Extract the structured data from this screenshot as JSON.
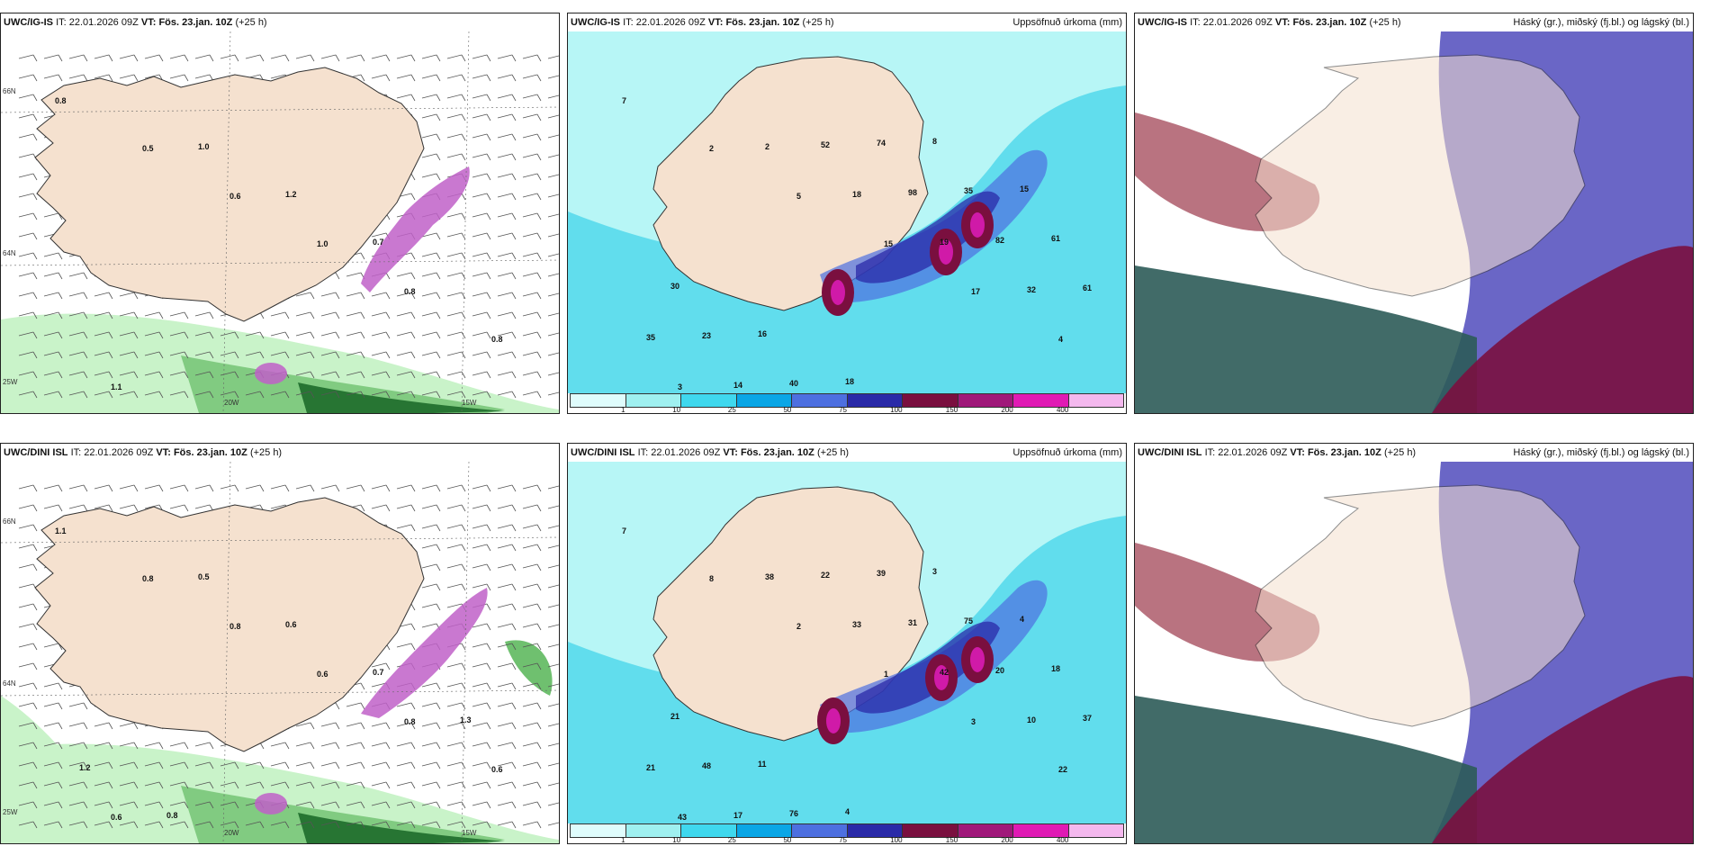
{
  "colors": {
    "land": "#f5e1cf",
    "sea_wind": "#ffffff",
    "precip_light": "#c9f3c9",
    "precip_mid": "#6fc06f",
    "precip_dark": "#1d6b2a",
    "snow_purple": "#c060c8",
    "cyan_low": "#b7f6f6",
    "cyan_mid": "#1cc9e6",
    "blue": "#4d6fe0",
    "navy": "#2a2aa8",
    "maroon": "#7a0f3f",
    "magenta": "#d01aa8",
    "low_cloud": "#2c5b58",
    "mid_cloud": "#5a55c0",
    "high_cloud": "#a85060"
  },
  "panels": [
    {
      "id": "ig-wind",
      "model": "UWC/IG-IS",
      "it_label": "IT:",
      "it": "22.01.2026 09Z",
      "vt_label": "VT:",
      "vt": "Fös. 23.jan. 10Z",
      "lead": "(+25 h)",
      "subtitle": "",
      "axis": {
        "lat_top": "66N",
        "lat_mid": "64N",
        "lon_left": "25W",
        "lon_mid": "20W",
        "lon_right": "15W"
      },
      "values": [
        "0.8",
        "0.5",
        "0.6",
        "1.0",
        "0.8",
        "0.8",
        "1.1",
        "1.0",
        "1.2",
        "0.7"
      ]
    },
    {
      "id": "ig-precip",
      "model": "UWC/IG-IS",
      "it_label": "IT:",
      "it": "22.01.2026 09Z",
      "vt_label": "VT:",
      "vt": "Fös. 23.jan. 10Z",
      "lead": "(+25 h)",
      "subtitle": "Uppsöfnuð úrkoma (mm)",
      "values": [
        "7",
        "2",
        "5",
        "15",
        "17",
        "4",
        "3",
        "2",
        "18",
        "19",
        "32",
        "35",
        "14",
        "52",
        "98",
        "82",
        "61",
        "23",
        "40",
        "74",
        "35",
        "61",
        "30",
        "16",
        "18",
        "8",
        "15"
      ],
      "legend": [
        "1",
        "10",
        "25",
        "50",
        "75",
        "100",
        "150",
        "200",
        "400"
      ]
    },
    {
      "id": "ig-cloud",
      "model": "UWC/IG-IS",
      "it_label": "IT:",
      "it": "22.01.2026 09Z",
      "vt_label": "VT:",
      "vt": "Fös. 23.jan. 10Z",
      "lead": "(+25 h)",
      "subtitle": "Háský (gr.), miðský (fj.bl.) og lágský (bl.)"
    },
    {
      "id": "dini-wind",
      "model": "UWC/DINI ISL",
      "it_label": "IT:",
      "it": "22.01.2026 09Z",
      "vt_label": "VT:",
      "vt": "Fös. 23.jan. 10Z",
      "lead": "(+25 h)",
      "subtitle": "",
      "axis": {
        "lat_top": "66N",
        "lat_mid": "64N",
        "lon_left": "25W",
        "lon_mid": "20W",
        "lon_right": "15W"
      },
      "values": [
        "1.1",
        "0.8",
        "0.8",
        "0.6",
        "0.8",
        "0.6",
        "0.6",
        "0.5",
        "0.6",
        "0.7",
        "1.3",
        "1.2",
        "0.8"
      ]
    },
    {
      "id": "dini-precip",
      "model": "UWC/DINI ISL",
      "it_label": "IT:",
      "it": "22.01.2026 09Z",
      "vt_label": "VT:",
      "vt": "Fös. 23.jan. 10Z",
      "lead": "(+25 h)",
      "subtitle": "Uppsöfnuð úrkoma (mm)",
      "values": [
        "7",
        "8",
        "2",
        "1",
        "3",
        "22",
        "43",
        "38",
        "33",
        "42",
        "10",
        "21",
        "17",
        "22",
        "31",
        "20",
        "37",
        "48",
        "76",
        "39",
        "75",
        "18",
        "21",
        "11",
        "4",
        "3",
        "4"
      ],
      "legend": [
        "1",
        "10",
        "25",
        "50",
        "75",
        "100",
        "150",
        "200",
        "400"
      ]
    },
    {
      "id": "dini-cloud",
      "model": "UWC/DINI ISL",
      "it_label": "IT:",
      "it": "22.01.2026 09Z",
      "vt_label": "VT:",
      "vt": "Fös. 23.jan. 10Z",
      "lead": "(+25 h)",
      "subtitle": "Háský (gr.), miðský (fj.bl.) og lágský (bl.)"
    }
  ]
}
